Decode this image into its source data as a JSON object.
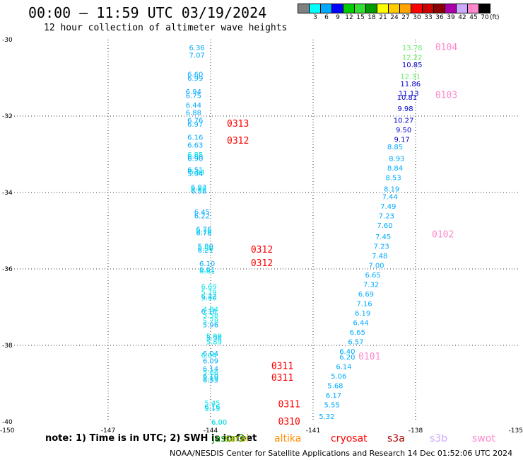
{
  "header": {
    "title": "00:00 – 11:59 UTC 03/19/2024",
    "subtitle": "12 hour collection of altimeter wave heights"
  },
  "legend": {
    "labels": [
      "3",
      "6",
      "9",
      "12",
      "15",
      "18",
      "21",
      "24",
      "27",
      "30",
      "33",
      "36",
      "39",
      "42",
      "45",
      "70"
    ],
    "unit": "(ft)",
    "colors": [
      "#808080",
      "#00ffff",
      "#00aaff",
      "#0000ff",
      "#00cc00",
      "#33dd33",
      "#009900",
      "#ffff00",
      "#ffcc00",
      "#ffa500",
      "#ff0000",
      "#cc0000",
      "#880000",
      "#aa00aa",
      "#ccaaff",
      "#ff88cc",
      "#000000"
    ]
  },
  "note": "note:  1) Time is in UTC; 2) SWH is in feet",
  "satellites": [
    {
      "label": "jason3",
      "color": "#008800"
    },
    {
      "label": "saral",
      "color": "#bbbb00"
    },
    {
      "label": "altika",
      "color": "#ff8c00"
    },
    {
      "label": "cryosat",
      "color": "#ff0000"
    },
    {
      "label": "s3a",
      "color": "#aa0000"
    },
    {
      "label": "s3b",
      "color": "#ccaaff"
    },
    {
      "label": "swot",
      "color": "#ff88cc"
    }
  ],
  "footer": "NOAA/NESDIS Center for Satellite Applications and Research   14 Dec 01:52:06 UTC 2024",
  "chart_data": {
    "type": "scatter",
    "xlim": [
      -150,
      -135
    ],
    "ylim": [
      -40,
      -30
    ],
    "x_ticks": [
      "-150",
      "-147",
      "-144",
      "-141",
      "-138",
      "-135"
    ],
    "y_ticks": [
      "-30",
      "-32",
      "-34",
      "-36",
      "-38",
      "-40"
    ],
    "grid": true,
    "series": [
      {
        "color": "#00aaff",
        "points": [
          {
            "x": -144.4,
            "y": -30.2,
            "label": "6.36"
          },
          {
            "x": -144.4,
            "y": -30.4,
            "label": "7.07"
          },
          {
            "x": -144.45,
            "y": -30.9,
            "label": "6.60"
          },
          {
            "x": -144.45,
            "y": -31.0,
            "label": "6.99"
          },
          {
            "x": -144.5,
            "y": -31.35,
            "label": "6.94"
          },
          {
            "x": -144.5,
            "y": -31.45,
            "label": "6.75"
          },
          {
            "x": -144.5,
            "y": -31.7,
            "label": "6.44"
          },
          {
            "x": -144.5,
            "y": -31.9,
            "label": "6.88"
          },
          {
            "x": -144.45,
            "y": -32.1,
            "label": "6.76"
          },
          {
            "x": -144.45,
            "y": -32.2,
            "label": "6.97"
          },
          {
            "x": -144.45,
            "y": -32.55,
            "label": "6.16"
          },
          {
            "x": -144.45,
            "y": -32.75,
            "label": "6.63"
          },
          {
            "x": -144.45,
            "y": -33.05,
            "label": "6.86"
          },
          {
            "x": -144.45,
            "y": -33.1,
            "label": "6.90"
          },
          {
            "x": -144.45,
            "y": -33.4,
            "label": "6.51"
          },
          {
            "x": -144.45,
            "y": -33.5,
            "label": "5.94"
          },
          {
            "x": -144.35,
            "y": -33.85,
            "label": "6.83"
          },
          {
            "x": -144.35,
            "y": -33.95,
            "label": "6.58"
          },
          {
            "x": -144.25,
            "y": -34.5,
            "label": "6.45"
          },
          {
            "x": -144.25,
            "y": -34.6,
            "label": "6.22"
          },
          {
            "x": -144.2,
            "y": -34.95,
            "label": "6.76"
          },
          {
            "x": -144.2,
            "y": -35.05,
            "label": "6.78"
          },
          {
            "x": -144.15,
            "y": -35.4,
            "label": "5.80"
          },
          {
            "x": -144.15,
            "y": -35.5,
            "label": "6.21"
          },
          {
            "x": -144.1,
            "y": -35.85,
            "label": "6.10"
          },
          {
            "x": -144.1,
            "y": -36.0,
            "label": "6.61"
          },
          {
            "x": -144.05,
            "y": -36.7,
            "label": "6.22"
          },
          {
            "x": -144.05,
            "y": -37.1,
            "label": "6.16"
          },
          {
            "x": -144.0,
            "y": -37.45,
            "label": "5.96"
          },
          {
            "x": -143.9,
            "y": -37.8,
            "label": "5.98"
          },
          {
            "x": -144.0,
            "y": -38.2,
            "label": "6.04"
          },
          {
            "x": -144.0,
            "y": -38.4,
            "label": "6.09"
          },
          {
            "x": -144.0,
            "y": -38.6,
            "label": "6.14"
          },
          {
            "x": -144.0,
            "y": -38.8,
            "label": "6.10"
          },
          {
            "x": -144.0,
            "y": -38.9,
            "label": "6.53"
          },
          {
            "x": -143.95,
            "y": -39.6,
            "label": "6.16"
          },
          {
            "x": -143.75,
            "y": -40.0,
            "label": "6.00"
          },
          {
            "x": -138.6,
            "y": -32.8,
            "label": "8.85"
          },
          {
            "x": -138.55,
            "y": -33.1,
            "label": "8.93"
          },
          {
            "x": -138.6,
            "y": -33.35,
            "label": "8.84"
          },
          {
            "x": -138.65,
            "y": -33.6,
            "label": "8.53"
          },
          {
            "x": -138.7,
            "y": -33.9,
            "label": "8.19"
          },
          {
            "x": -138.75,
            "y": -34.1,
            "label": "7.44"
          },
          {
            "x": -138.8,
            "y": -34.35,
            "label": "7.49"
          },
          {
            "x": -138.85,
            "y": -34.6,
            "label": "7.23"
          },
          {
            "x": -138.9,
            "y": -34.85,
            "label": "7.60"
          },
          {
            "x": -138.95,
            "y": -35.15,
            "label": "7.45"
          },
          {
            "x": -139.0,
            "y": -35.4,
            "label": "7.23"
          },
          {
            "x": -139.05,
            "y": -35.65,
            "label": "7.48"
          },
          {
            "x": -139.15,
            "y": -35.9,
            "label": "7.00"
          },
          {
            "x": -139.25,
            "y": -36.15,
            "label": "6.65"
          },
          {
            "x": -139.3,
            "y": -36.4,
            "label": "7.32"
          },
          {
            "x": -139.45,
            "y": -36.65,
            "label": "6.69"
          },
          {
            "x": -139.5,
            "y": -36.9,
            "label": "7.16"
          },
          {
            "x": -139.55,
            "y": -37.15,
            "label": "6.19"
          },
          {
            "x": -139.6,
            "y": -37.4,
            "label": "6.44"
          },
          {
            "x": -139.7,
            "y": -37.65,
            "label": "6.65"
          },
          {
            "x": -139.75,
            "y": -37.9,
            "label": "6.57"
          },
          {
            "x": -140.0,
            "y": -38.15,
            "label": "6.40"
          },
          {
            "x": -140.0,
            "y": -38.3,
            "label": "6.20"
          },
          {
            "x": -140.1,
            "y": -38.55,
            "label": "6.14"
          },
          {
            "x": -140.25,
            "y": -38.8,
            "label": "5.06"
          },
          {
            "x": -140.35,
            "y": -39.05,
            "label": "5.68"
          },
          {
            "x": -140.4,
            "y": -39.3,
            "label": "6.17"
          },
          {
            "x": -140.45,
            "y": -39.55,
            "label": "5.55"
          },
          {
            "x": -140.6,
            "y": -39.85,
            "label": "5.32"
          }
        ]
      },
      {
        "color": "#00e5e5",
        "points": [
          {
            "x": -144.45,
            "y": -33.0,
            "label": "6.85"
          },
          {
            "x": -144.4,
            "y": -33.45,
            "label": "5.94"
          },
          {
            "x": -144.35,
            "y": -33.9,
            "label": "6.58"
          },
          {
            "x": -144.2,
            "y": -35.0,
            "label": "6.16"
          },
          {
            "x": -144.15,
            "y": -35.45,
            "label": "5.80"
          },
          {
            "x": -144.1,
            "y": -36.05,
            "label": "6.61"
          },
          {
            "x": -144.05,
            "y": -36.45,
            "label": "6.69"
          },
          {
            "x": -144.05,
            "y": -36.6,
            "label": "5.79"
          },
          {
            "x": -144.05,
            "y": -36.75,
            "label": "5.90"
          },
          {
            "x": -144.0,
            "y": -37.05,
            "label": "4.84"
          },
          {
            "x": -144.0,
            "y": -37.2,
            "label": "5.58"
          },
          {
            "x": -144.0,
            "y": -37.35,
            "label": "5.78"
          },
          {
            "x": -143.9,
            "y": -37.75,
            "label": "5.99"
          },
          {
            "x": -143.9,
            "y": -37.9,
            "label": "5.89"
          },
          {
            "x": -144.05,
            "y": -38.25,
            "label": "6.04"
          },
          {
            "x": -144.0,
            "y": -38.7,
            "label": "5.66"
          },
          {
            "x": -144.0,
            "y": -38.85,
            "label": "5.10"
          },
          {
            "x": -143.95,
            "y": -39.5,
            "label": "5.45"
          },
          {
            "x": -143.95,
            "y": -39.65,
            "label": "5.15"
          },
          {
            "x": -143.75,
            "y": -40.0,
            "label": "6.00"
          }
        ]
      },
      {
        "color": "#0000cc",
        "points": [
          {
            "x": -138.1,
            "y": -30.65,
            "label": "10.85"
          },
          {
            "x": -138.15,
            "y": -31.15,
            "label": "11.86"
          },
          {
            "x": -138.2,
            "y": -31.4,
            "label": "11.13"
          },
          {
            "x": -138.25,
            "y": -31.5,
            "label": "10.81"
          },
          {
            "x": -138.3,
            "y": -31.8,
            "label": "9.98"
          },
          {
            "x": -138.35,
            "y": -32.1,
            "label": "10.27"
          },
          {
            "x": -138.35,
            "y": -32.35,
            "label": "9.50"
          },
          {
            "x": -138.4,
            "y": -32.6,
            "label": "9.17"
          }
        ]
      },
      {
        "color": "#66ee66",
        "points": [
          {
            "x": -138.1,
            "y": -30.2,
            "label": "13.78"
          },
          {
            "x": -138.1,
            "y": -30.45,
            "label": "12.22"
          },
          {
            "x": -138.15,
            "y": -30.95,
            "label": "12.31"
          }
        ]
      },
      {
        "color": "#ff0000",
        "points": [
          {
            "x": -143.2,
            "y": -32.2,
            "label": "0313"
          },
          {
            "x": -143.2,
            "y": -32.65,
            "label": "0312"
          },
          {
            "x": -142.5,
            "y": -35.5,
            "label": "0312"
          },
          {
            "x": -142.5,
            "y": -35.85,
            "label": "0312"
          },
          {
            "x": -141.9,
            "y": -38.55,
            "label": "0311"
          },
          {
            "x": -141.9,
            "y": -38.85,
            "label": "0311"
          },
          {
            "x": -141.7,
            "y": -39.55,
            "label": "0311"
          },
          {
            "x": -141.7,
            "y": -40.0,
            "label": "0310"
          }
        ]
      },
      {
        "color": "#ff88cc",
        "points": [
          {
            "x": -137.1,
            "y": -30.2,
            "label": "0104"
          },
          {
            "x": -137.1,
            "y": -31.45,
            "label": "0103"
          },
          {
            "x": -137.2,
            "y": -35.1,
            "label": "0102"
          },
          {
            "x": -139.35,
            "y": -38.3,
            "label": "0101"
          }
        ]
      }
    ]
  }
}
